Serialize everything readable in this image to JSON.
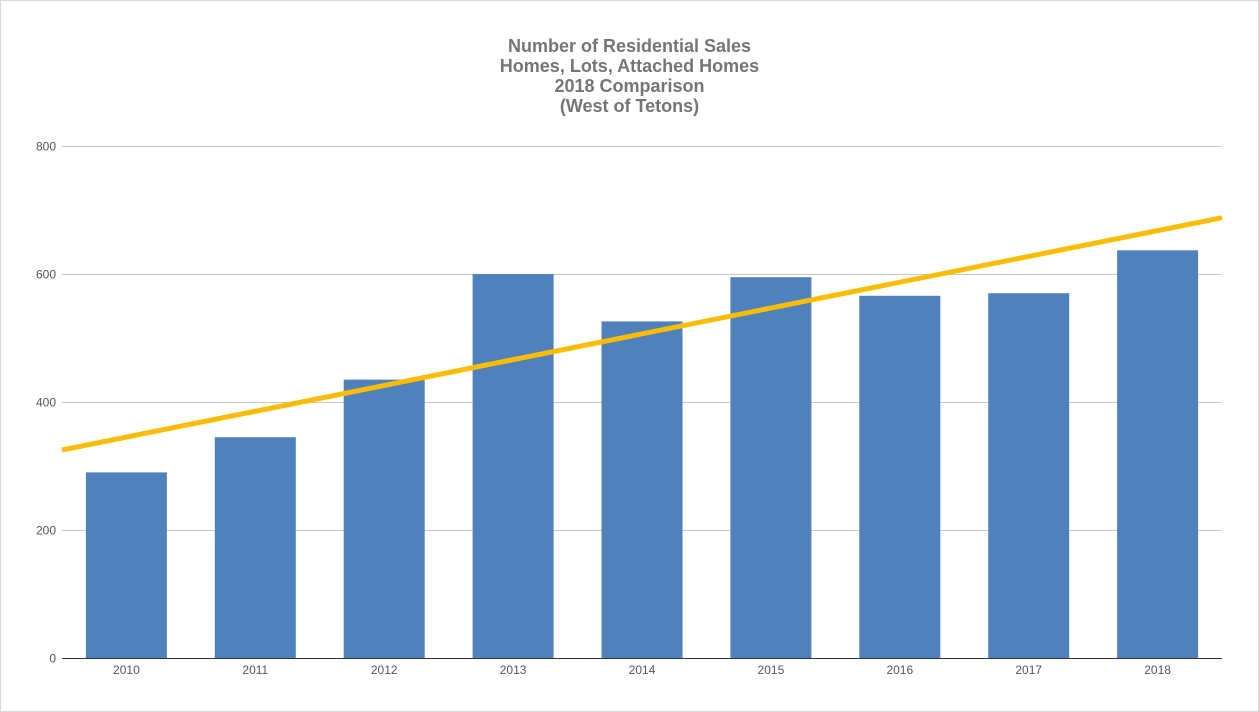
{
  "chart_data": {
    "type": "bar",
    "title": [
      "Number of Residential Sales",
      "Homes, Lots, Attached Homes",
      "2018 Comparison",
      "(West of Tetons)"
    ],
    "categories": [
      "2010",
      "2011",
      "2012",
      "2013",
      "2014",
      "2015",
      "2016",
      "2017",
      "2018"
    ],
    "series": [
      {
        "values": [
          290,
          345,
          435,
          600,
          526,
          595,
          566,
          570,
          637
        ],
        "color": "#4f81bd"
      }
    ],
    "trendline": {
      "type": "linear",
      "color": "#fbbc04",
      "start_value": 325,
      "end_value": 688
    },
    "ylim": [
      0,
      800
    ],
    "yticks": [
      0,
      200,
      400,
      600,
      800
    ],
    "xlabel": "",
    "ylabel": "",
    "grid": true,
    "legend": "none"
  }
}
